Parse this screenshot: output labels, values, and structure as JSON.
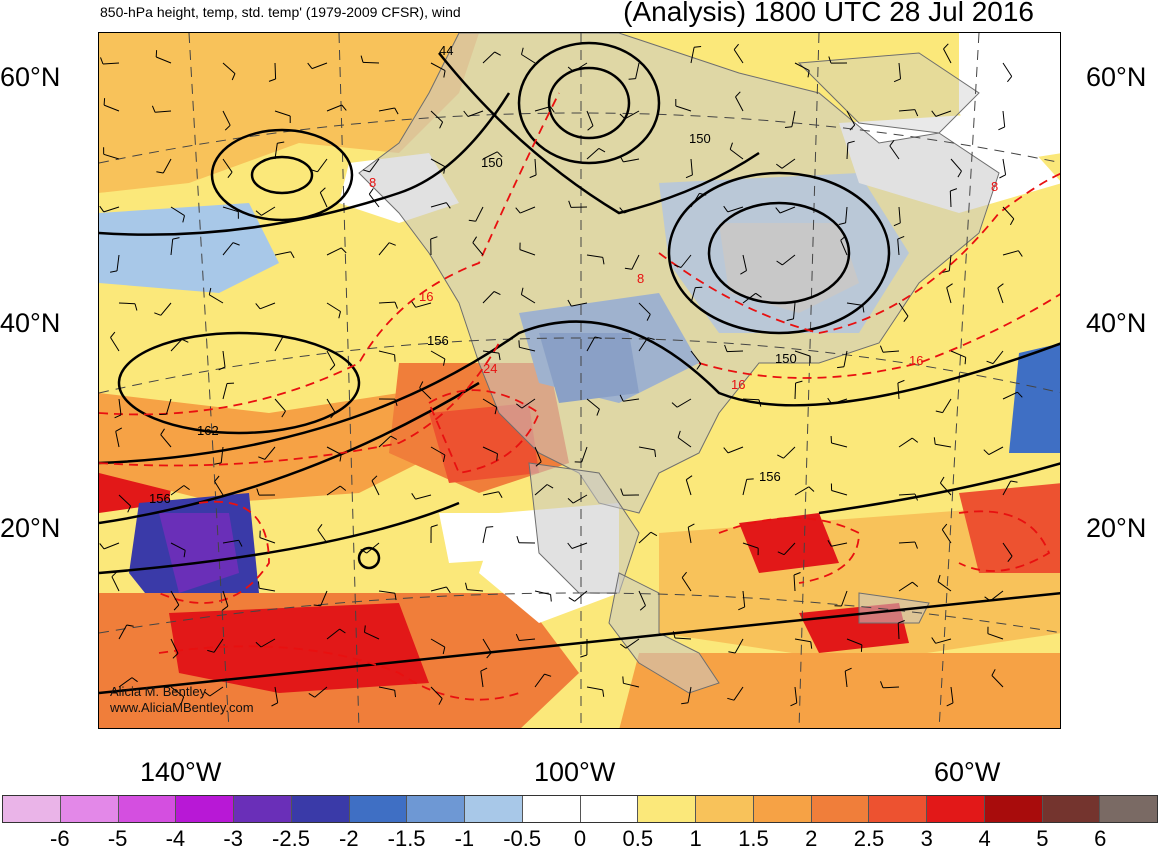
{
  "header": {
    "left_title": "850-hPa height, temp, std. temp' (1979-2009 CFSR), wind",
    "right_title": "(Analysis) 1800 UTC 28 Jul 2016"
  },
  "map": {
    "lat_labels": [
      "60°N",
      "40°N",
      "20°N"
    ],
    "lon_labels": [
      "140°W",
      "100°W",
      "60°W"
    ],
    "credit": [
      "Alicia M. Bentley",
      "www.AliciaMBentley.com"
    ],
    "height_contour_labels": [
      "44",
      "150",
      "150",
      "150",
      "156",
      "156",
      "156",
      "162"
    ],
    "temp_contour_labels": [
      "8",
      "8",
      "8",
      "16",
      "16",
      "16",
      "24"
    ],
    "colors": {
      "land": "#c8c8c8",
      "contour_height": "#000000",
      "contour_temp": "#e81010"
    }
  },
  "colorbar": {
    "ticks": [
      "-6",
      "-5",
      "-4",
      "-3",
      "-2.5",
      "-2",
      "-1.5",
      "-1",
      "-0.5",
      "0",
      "0.5",
      "1",
      "1.5",
      "2",
      "2.5",
      "3",
      "4",
      "5",
      "6"
    ],
    "colors": [
      "#eab4e8",
      "#e388e8",
      "#d44fe0",
      "#b818d6",
      "#6a2fb8",
      "#3a3aa8",
      "#3f6fc4",
      "#6e98d4",
      "#a8c8e8",
      "#ffffff",
      "#ffffff",
      "#fbe87a",
      "#f8c25a",
      "#f6a245",
      "#f07e3a",
      "#ed5230",
      "#e21818",
      "#a80c0c",
      "#74342e",
      "#7a6a64"
    ]
  }
}
